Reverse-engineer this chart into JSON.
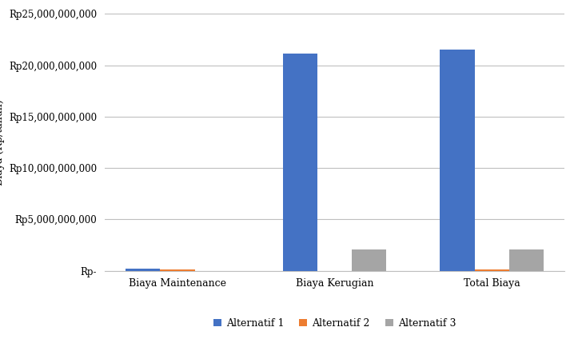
{
  "categories": [
    "Biaya Maintenance",
    "Biaya Kerugian",
    "Total Biaya"
  ],
  "series": [
    {
      "name": "Alternatif 1",
      "color": "#4472C4",
      "values": [
        200000000,
        21100000000,
        21500000000
      ]
    },
    {
      "name": "Alternatif 2",
      "color": "#ED7D31",
      "values": [
        150000000,
        0,
        150000000
      ]
    },
    {
      "name": "Alternatif 3",
      "color": "#A5A5A5",
      "values": [
        0,
        2100000000,
        2100000000
      ]
    }
  ],
  "ylabel": "Biaya (Rp/tahun)",
  "ylim": [
    0,
    25000000000
  ],
  "yticks": [
    0,
    5000000000,
    10000000000,
    15000000000,
    20000000000,
    25000000000
  ],
  "ytick_labels": [
    "Rp-",
    "Rp5,000,000,000",
    "Rp10,000,000,000",
    "Rp15,000,000,000",
    "Rp20,000,000,000",
    "Rp25,000,000,000"
  ],
  "bar_width": 0.22,
  "grid_color": "#BFBFBF",
  "background_color": "#FFFFFF",
  "plot_bg_color": "#F2F2F2",
  "legend_ncol": 3,
  "ylabel_fontsize": 9,
  "xtick_fontsize": 9,
  "ytick_fontsize": 8.5,
  "legend_fontsize": 9
}
